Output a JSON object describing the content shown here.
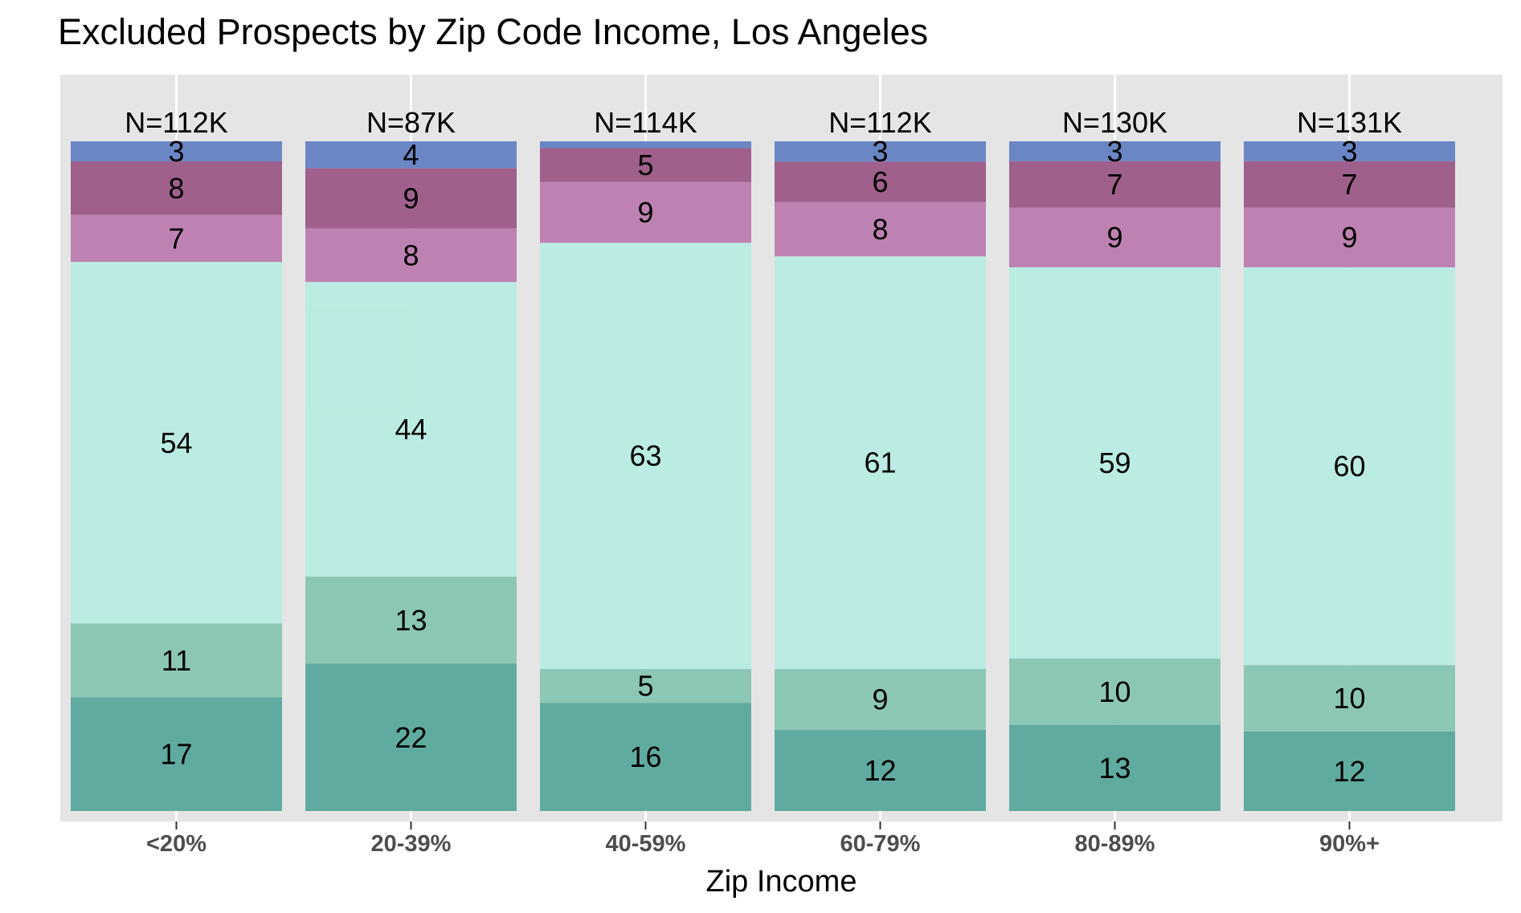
{
  "chart_data": {
    "type": "bar",
    "stacked": "percent",
    "title": "Excluded Prospects by Zip Code Income, Los Angeles",
    "xlabel": "Zip Income",
    "ylabel": "",
    "ylim": [
      0,
      100
    ],
    "grid": true,
    "legend": "none",
    "categories": [
      "<20%",
      "20-39%",
      "40-59%",
      "60-79%",
      "80-89%",
      "90%+"
    ],
    "totals": [
      "N=112K",
      "N=87K",
      "N=114K",
      "N=112K",
      "N=130K",
      "N=131K"
    ],
    "series": [
      {
        "color": "#5ba89d",
        "values": [
          17,
          22,
          16,
          12,
          13,
          12
        ]
      },
      {
        "color": "#88c5b4",
        "values": [
          11,
          13,
          5,
          9,
          10,
          10
        ]
      },
      {
        "color": "#b8ebe2",
        "values": [
          54,
          44,
          63,
          61,
          59,
          60
        ]
      },
      {
        "color": "#bc7eb0",
        "values": [
          7,
          8,
          9,
          8,
          9,
          9
        ]
      },
      {
        "color": "#9c5b88",
        "values": [
          8,
          9,
          5,
          6,
          7,
          7
        ]
      },
      {
        "color": "#6582c2",
        "values": [
          3,
          4,
          1,
          3,
          3,
          3
        ]
      }
    ],
    "hidden_labels": [
      [
        5,
        2
      ]
    ],
    "colors": {
      "panel_background": "#e5e5e5",
      "grid_line": "#ffffff",
      "tick_text": "#4d4d4d"
    }
  }
}
